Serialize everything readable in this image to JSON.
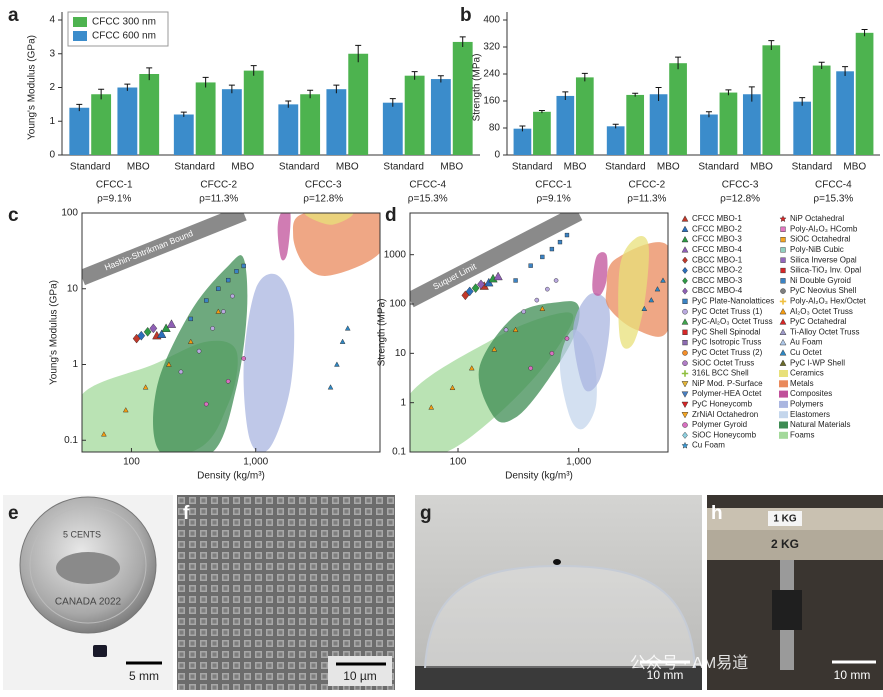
{
  "chart_data": [
    {
      "panel": "a",
      "type": "bar",
      "y_label": "Young's Modulus (GPa)",
      "groups": [
        "CFCC-1",
        "CFCC-2",
        "CFCC-3",
        "CFCC-4"
      ],
      "group_notes": [
        "ρ=9.1%",
        "ρ=11.3%",
        "ρ=12.8%",
        "ρ=15.3%"
      ],
      "subcategories": [
        "Standard",
        "MBO"
      ],
      "ylim": [
        0,
        4
      ],
      "yticks": [
        0,
        1,
        2,
        3,
        4
      ],
      "legend": "upper left",
      "series": [
        {
          "name": "CFCC 300 nm",
          "color": "#4db34f",
          "values": [
            1.8,
            2.4,
            2.15,
            2.5,
            1.8,
            3.0,
            2.35,
            3.35
          ],
          "errors": [
            0.15,
            0.18,
            0.15,
            0.15,
            0.12,
            0.25,
            0.12,
            0.15
          ]
        },
        {
          "name": "CFCC 600 nm",
          "color": "#3b8ccb",
          "values": [
            1.4,
            2.0,
            1.2,
            1.95,
            1.5,
            1.95,
            1.55,
            2.25
          ],
          "errors": [
            0.1,
            0.1,
            0.07,
            0.12,
            0.1,
            0.12,
            0.12,
            0.1
          ]
        }
      ]
    },
    {
      "panel": "b",
      "type": "bar",
      "y_label": "Strength (MPa)",
      "groups": [
        "CFCC-1",
        "CFCC-2",
        "CFCC-3",
        "CFCC-4"
      ],
      "group_notes": [
        "ρ=9.1%",
        "ρ=11.3%",
        "ρ=12.8%",
        "ρ=15.3%"
      ],
      "subcategories": [
        "Standard",
        "MBO"
      ],
      "ylim": [
        0,
        400
      ],
      "yticks": [
        0,
        80,
        160,
        240,
        320,
        400
      ],
      "series": [
        {
          "color": "#4db34f",
          "values": [
            128,
            230,
            178,
            272,
            185,
            325,
            265,
            362
          ],
          "errors": [
            4,
            12,
            5,
            18,
            8,
            14,
            10,
            10
          ]
        },
        {
          "color": "#3b8ccb",
          "values": [
            78,
            175,
            85,
            180,
            120,
            180,
            158,
            248
          ],
          "errors": [
            8,
            12,
            6,
            20,
            8,
            22,
            12,
            14
          ]
        }
      ]
    },
    {
      "panel": "c",
      "type": "scatter",
      "log": true,
      "x_label": "Density (kg/m³)",
      "y_label": "Young's Modulus (GPa)",
      "xlim": [
        40,
        10000
      ],
      "ylim": [
        0.07,
        100
      ],
      "xticks": [
        100,
        {
          "value": 1000,
          "label": "1,000"
        }
      ],
      "yticks": [
        0.1,
        1,
        10,
        100
      ],
      "bound": {
        "label": "Hashin-Shtrikman Bound",
        "x": [
          40,
          800
        ],
        "y": [
          14,
          100
        ]
      },
      "regions": [
        {
          "name": "Foams",
          "x": [
            40,
            40,
            150,
            400,
            700,
            600,
            300
          ],
          "y": [
            0.07,
            0.4,
            1,
            2,
            1.5,
            0.3,
            0.07
          ]
        },
        {
          "name": "Natural Materials",
          "x": [
            170,
            160,
            300,
            600,
            800,
            850,
            700,
            450
          ],
          "y": [
            0.07,
            0.5,
            5,
            20,
            25,
            5,
            0.5,
            0.07
          ]
        },
        {
          "name": "Polymers",
          "x": [
            900,
            800,
            1000,
            1500,
            2000,
            1900,
            1300
          ],
          "y": [
            0.1,
            1,
            10,
            15,
            5,
            0.5,
            0.08
          ]
        },
        {
          "name": "Composites",
          "x": [
            1500,
            1600,
            1900,
            1800,
            1600
          ],
          "y": [
            60,
            100,
            100,
            30,
            25
          ]
        },
        {
          "name": "Metals",
          "x": [
            2000,
            2500,
            10000,
            10000,
            4000,
            2500
          ],
          "y": [
            50,
            100,
            100,
            30,
            15,
            20
          ]
        },
        {
          "name": "Ceramics",
          "x": [
            2500,
            6000,
            4000
          ],
          "y": [
            100,
            100,
            70
          ]
        }
      ],
      "series": [
        {
          "name": "CFCC MBO-1",
          "x": [
            160
          ],
          "y": [
            2.4
          ]
        },
        {
          "name": "CFCC MBO-2",
          "x": [
            175
          ],
          "y": [
            2.5
          ]
        },
        {
          "name": "CFCC MBO-3",
          "x": [
            190
          ],
          "y": [
            3.0
          ]
        },
        {
          "name": "CFCC MBO-4",
          "x": [
            210
          ],
          "y": [
            3.4
          ]
        },
        {
          "name": "CBCC MBO-1",
          "x": [
            110
          ],
          "y": [
            2.2
          ]
        },
        {
          "name": "CBCC MBO-2",
          "x": [
            120
          ],
          "y": [
            2.4
          ]
        },
        {
          "name": "CBCC MBO-3",
          "x": [
            135
          ],
          "y": [
            2.7
          ]
        },
        {
          "name": "CBCC MBO-4",
          "x": [
            150
          ],
          "y": [
            3.0
          ]
        },
        {
          "name": "PyC Plate-Nanolattices",
          "x": [
            300,
            400,
            500,
            600,
            700,
            800
          ],
          "y": [
            4,
            7,
            10,
            13,
            17,
            20
          ]
        },
        {
          "name": "PyC Octet Truss (1)",
          "x": [
            250,
            350,
            450,
            550,
            650
          ],
          "y": [
            0.8,
            1.5,
            3,
            5,
            8
          ]
        },
        {
          "name": "Al₂O₃ Octet Truss",
          "x": [
            60,
            90,
            130,
            200,
            300,
            500
          ],
          "y": [
            0.12,
            0.25,
            0.5,
            1,
            2,
            5
          ]
        },
        {
          "name": "Cu Octet",
          "x": [
            4000,
            4500,
            5000,
            5500
          ],
          "y": [
            0.5,
            1,
            2,
            3
          ]
        },
        {
          "name": "Polymer Gyroid",
          "x": [
            400,
            600,
            800
          ],
          "y": [
            0.3,
            0.6,
            1.2
          ]
        }
      ]
    },
    {
      "panel": "d",
      "type": "scatter",
      "log": true,
      "x_label": "Density (kg/m³)",
      "y_label": "Strength (MPa)",
      "xlim": [
        40,
        5500
      ],
      "ylim": [
        0.1,
        7000
      ],
      "xticks": [
        100,
        {
          "value": 1000,
          "label": "1,000"
        }
      ],
      "yticks": [
        0.1,
        1,
        10,
        100,
        1000
      ],
      "bound": {
        "label": "Suquet Limit",
        "x": [
          40,
          1000
        ],
        "y": [
          120,
          7000
        ]
      },
      "regions": [
        {
          "name": "Foams",
          "x": [
            40,
            40,
            200,
            600,
            900,
            500,
            200,
            80
          ],
          "y": [
            0.1,
            1.5,
            20,
            60,
            50,
            5,
            0.5,
            0.1
          ]
        },
        {
          "name": "Natural Materials",
          "x": [
            200,
            150,
            300,
            700,
            1000,
            900,
            500,
            300
          ],
          "y": [
            0.5,
            5,
            60,
            110,
            90,
            20,
            2,
            0.5
          ]
        },
        {
          "name": "Elastomers",
          "x": [
            850,
            700,
            900,
            1300,
            1400,
            1100
          ],
          "y": [
            0.5,
            6,
            30,
            10,
            1,
            0.3
          ]
        },
        {
          "name": "Polymers",
          "x": [
            1100,
            900,
            1200,
            1700,
            1800,
            1500
          ],
          "y": [
            2,
            30,
            150,
            120,
            30,
            3
          ]
        },
        {
          "name": "Composites",
          "x": [
            1300,
            1400,
            1700,
            1700,
            1500
          ],
          "y": [
            200,
            900,
            1000,
            300,
            150
          ]
        },
        {
          "name": "Metals",
          "x": [
            1700,
            2000,
            5500,
            5500,
            3000,
            1800
          ],
          "y": [
            200,
            800,
            1500,
            30,
            30,
            80
          ]
        },
        {
          "name": "Ceramics",
          "x": [
            2200,
            2200,
            3000,
            3800,
            3500,
            2800
          ],
          "y": [
            20,
            600,
            2200,
            1500,
            100,
            15
          ]
        }
      ],
      "series": [
        {
          "name": "CFCC MBO-1",
          "x": [
            165
          ],
          "y": [
            230
          ]
        },
        {
          "name": "CFCC MBO-2",
          "x": [
            180
          ],
          "y": [
            270
          ]
        },
        {
          "name": "CFCC MBO-3",
          "x": [
            195
          ],
          "y": [
            325
          ]
        },
        {
          "name": "CFCC MBO-4",
          "x": [
            215
          ],
          "y": [
            360
          ]
        },
        {
          "name": "CBCC MBO-1",
          "x": [
            115
          ],
          "y": [
            150
          ]
        },
        {
          "name": "CBCC MBO-2",
          "x": [
            125
          ],
          "y": [
            180
          ]
        },
        {
          "name": "CBCC MBO-3",
          "x": [
            140
          ],
          "y": [
            210
          ]
        },
        {
          "name": "CBCC MBO-4",
          "x": [
            155
          ],
          "y": [
            250
          ]
        },
        {
          "name": "PyC Plate-Nanolattices",
          "x": [
            300,
            400,
            500,
            600,
            700,
            800
          ],
          "y": [
            300,
            600,
            900,
            1300,
            1800,
            2500
          ]
        },
        {
          "name": "PyC Octet Truss (1)",
          "x": [
            250,
            350,
            450,
            550,
            650
          ],
          "y": [
            30,
            70,
            120,
            200,
            300
          ]
        },
        {
          "name": "Al₂O₃ Octet Truss",
          "x": [
            60,
            90,
            130,
            200,
            300,
            500
          ],
          "y": [
            0.8,
            2,
            5,
            12,
            30,
            80
          ]
        },
        {
          "name": "Cu Octet",
          "x": [
            3500,
            4000,
            4500,
            5000
          ],
          "y": [
            80,
            120,
            200,
            300
          ]
        },
        {
          "name": "Polymer Gyroid",
          "x": [
            400,
            600,
            800
          ],
          "y": [
            5,
            10,
            20
          ]
        }
      ]
    }
  ],
  "legend": {
    "markers": [
      {
        "name": "CFCC MBO-1",
        "color": "#c0392b",
        "marker": "triangle"
      },
      {
        "name": "CFCC MBO-2",
        "color": "#2c6fbb",
        "marker": "triangle"
      },
      {
        "name": "CFCC MBO-3",
        "color": "#2e9a45",
        "marker": "triangle"
      },
      {
        "name": "CFCC MBO-4",
        "color": "#8e5fb5",
        "marker": "triangle"
      },
      {
        "name": "CBCC MBO-1",
        "color": "#c0392b",
        "marker": "diamond"
      },
      {
        "name": "CBCC MBO-2",
        "color": "#2c6fbb",
        "marker": "diamond"
      },
      {
        "name": "CBCC MBO-3",
        "color": "#2e9a45",
        "marker": "diamond"
      },
      {
        "name": "CBCC MBO-4",
        "color": "#8e5fb5",
        "marker": "diamond"
      },
      {
        "name": "PyC Plate-Nanolattices",
        "color": "#3b83c4",
        "marker": "square"
      },
      {
        "name": "PyC Octet Truss (1)",
        "color": "#b9a9df",
        "marker": "circle"
      },
      {
        "name": "PyC-Al₂O₃ Octet Truss",
        "color": "#3fa34d",
        "marker": "triangle"
      },
      {
        "name": "PyC Shell Spinodal",
        "color": "#d62728",
        "marker": "square"
      },
      {
        "name": "PyC Isotropic Truss",
        "color": "#8c6bb1",
        "marker": "square"
      },
      {
        "name": "PyC Octet Truss (2)",
        "color": "#f28e2b",
        "marker": "circle"
      },
      {
        "name": "SiOC Octet Truss",
        "color": "#b07cc6",
        "marker": "circle"
      },
      {
        "name": "316L BCC Shell",
        "color": "#8fbf3f",
        "marker": "plus"
      },
      {
        "name": "NiP Mod. P-Surface",
        "color": "#e3b53a",
        "marker": "triangle-down"
      },
      {
        "name": "Polymer-HEA Octet",
        "color": "#4a7fc0",
        "marker": "triangle-down"
      },
      {
        "name": "PyC Honeycomb",
        "color": "#d62728",
        "marker": "triangle-down"
      },
      {
        "name": "ZrNiAl Octahedron",
        "color": "#f5a623",
        "marker": "triangle-down"
      },
      {
        "name": "Polymer Gyroid",
        "color": "#d870c0",
        "marker": "circle"
      },
      {
        "name": "SiOC Honeycomb",
        "color": "#8fd0e0",
        "marker": "diamond"
      },
      {
        "name": "Cu Foam",
        "color": "#3b9bd6",
        "marker": "star"
      },
      {
        "name": "NiP Octahedral",
        "color": "#d62728",
        "marker": "star"
      },
      {
        "name": "Poly-Al₂O₃ HComb",
        "color": "#e377c2",
        "marker": "square"
      },
      {
        "name": "SiOC Octahedral",
        "color": "#f5a623",
        "marker": "square"
      },
      {
        "name": "Poly-NiB Cubic",
        "color": "#8fd0c0",
        "marker": "square"
      },
      {
        "name": "Silica Inverse Opal",
        "color": "#9467bd",
        "marker": "square"
      },
      {
        "name": "Silica-TiO₂ Inv. Opal",
        "color": "#d62728",
        "marker": "square"
      },
      {
        "name": "Ni Double Gyroid",
        "color": "#3b83c4",
        "marker": "square"
      },
      {
        "name": "PyC Neovius Shell",
        "color": "#7f7f7f",
        "marker": "circle"
      },
      {
        "name": "Poly-Al₂O₃ Hex/Octet",
        "color": "#f0c040",
        "marker": "plus"
      },
      {
        "name": "Al₂O₃ Octet Truss",
        "color": "#f39c12",
        "marker": "triangle"
      },
      {
        "name": "PyC Octahedral",
        "color": "#d62728",
        "marker": "triangle"
      },
      {
        "name": "Ti-Alloy Octet Truss",
        "color": "#9e9ac8",
        "marker": "triangle"
      },
      {
        "name": "Au Foam",
        "color": "#aec7e8",
        "marker": "triangle"
      },
      {
        "name": "Cu Octet",
        "color": "#2e86c1",
        "marker": "triangle"
      },
      {
        "name": "PyC I-WP Shell",
        "color": "#6b6b2a",
        "marker": "triangle"
      }
    ],
    "materials": [
      {
        "name": "Ceramics",
        "color": "#e8e07a"
      },
      {
        "name": "Metals",
        "color": "#ea8a5c"
      },
      {
        "name": "Composites",
        "color": "#c0509a"
      },
      {
        "name": "Polymers",
        "color": "#aab6e0"
      },
      {
        "name": "Elastomers",
        "color": "#c4d6ec"
      },
      {
        "name": "Natural Materials",
        "color": "#3e8c53"
      },
      {
        "name": "Foams",
        "color": "#a3d99b"
      }
    ]
  },
  "photos": [
    {
      "panel": "e",
      "scale_bar": "5 mm",
      "texts": [
        "5 CENTS",
        "CANADA 2022"
      ]
    },
    {
      "panel": "f",
      "scale_bar": "10 µm"
    },
    {
      "panel": "g",
      "scale_bar": "10 mm"
    },
    {
      "panel": "h",
      "scale_bar": "10 mm",
      "texts": [
        "1 KG",
        "2 KG"
      ]
    }
  ],
  "watermark": "公众号 · AM易道"
}
